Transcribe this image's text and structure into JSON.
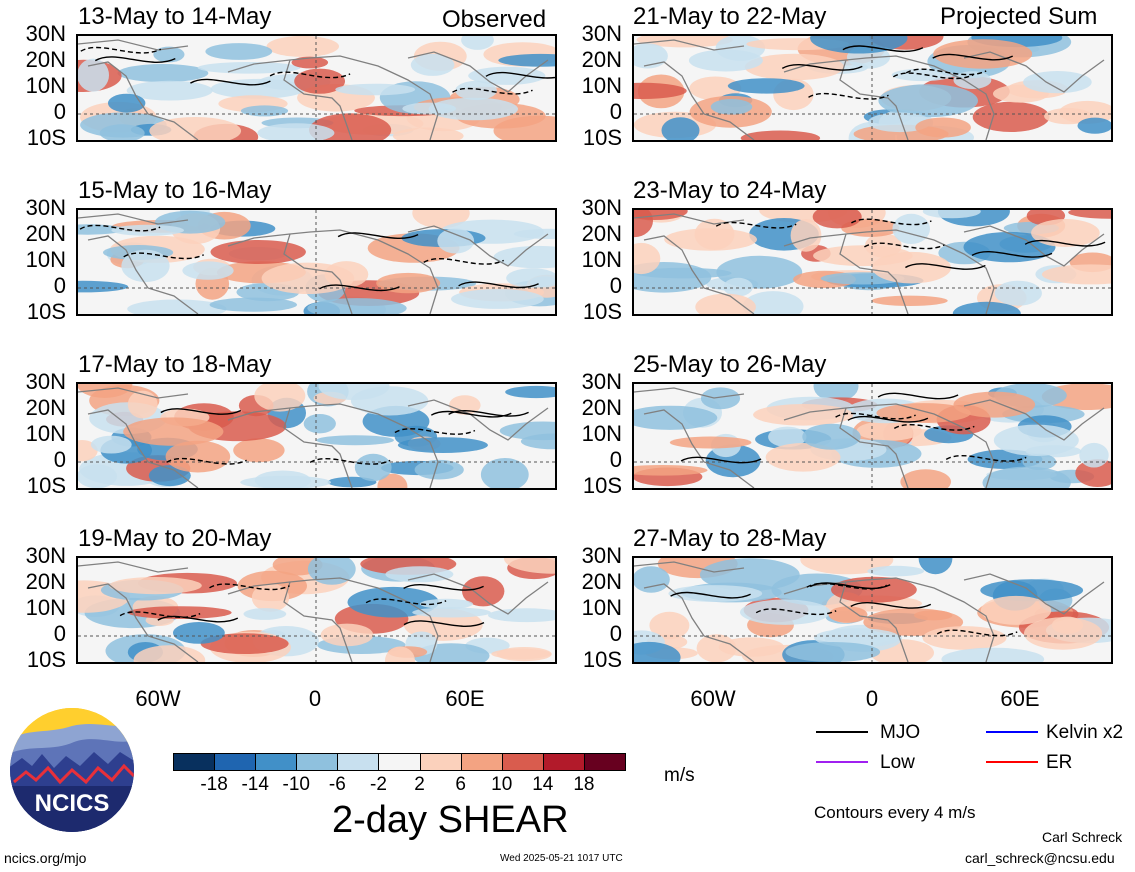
{
  "header": {
    "left_label": "Observed",
    "right_label": "Projected Sum"
  },
  "panels_left": [
    {
      "title": "13-May to 14-May"
    },
    {
      "title": "15-May to 16-May"
    },
    {
      "title": "17-May to 18-May"
    },
    {
      "title": "19-May to 20-May"
    }
  ],
  "panels_right": [
    {
      "title": "21-May to 22-May"
    },
    {
      "title": "23-May to 24-May"
    },
    {
      "title": "25-May to 26-May"
    },
    {
      "title": "27-May to 28-May"
    }
  ],
  "lat_labels": [
    "30N",
    "20N",
    "10N",
    "0",
    "10S"
  ],
  "lon_labels": [
    "60W",
    "0",
    "60E"
  ],
  "colorbar": {
    "ticks": [
      "-18",
      "-14",
      "-10",
      "-6",
      "-2",
      "2",
      "6",
      "10",
      "14",
      "18"
    ],
    "colors": [
      "#08305e",
      "#1f65b0",
      "#4190c8",
      "#8fc1de",
      "#c8e0ef",
      "#f5f5f5",
      "#fbd1bc",
      "#f3a382",
      "#d95c4e",
      "#b21a2a",
      "#67001f"
    ],
    "unit": "m/s"
  },
  "title": "2-day SHEAR",
  "legend": {
    "mjo": "MJO",
    "kelvin": "Kelvin x2",
    "low": "Low",
    "er": "ER",
    "contours": "Contours every 4 m/s",
    "colors": {
      "mjo": "#000000",
      "kelvin": "#0000ff",
      "low": "#a020f0",
      "er": "#ff0000"
    }
  },
  "logo": {
    "text": "NCICS"
  },
  "footer": {
    "url": "ncics.org/mjo",
    "timestamp": "Wed 2025-05-21 1017 UTC",
    "author": "Carl Schreck",
    "email": "carl_schreck@ncsu.edu"
  }
}
